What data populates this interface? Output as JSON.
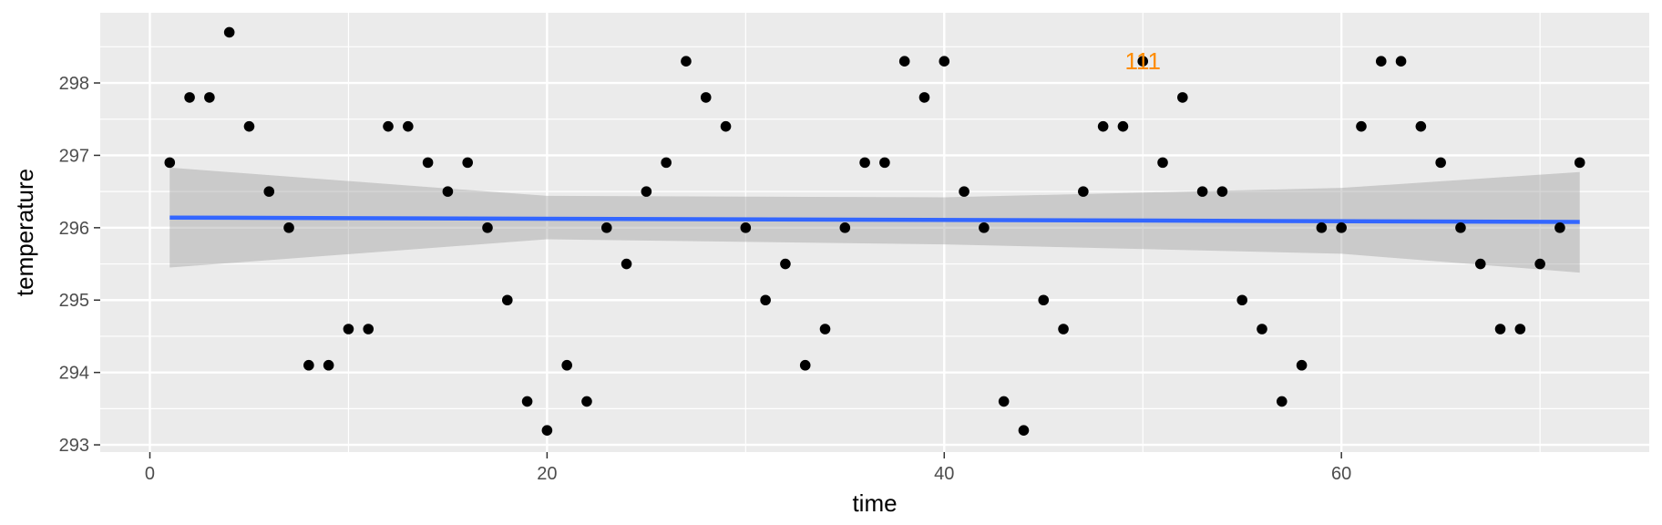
{
  "chart_data": {
    "type": "scatter",
    "title": "",
    "xlabel": "time",
    "ylabel": "temperature",
    "xlim": [
      -2.5,
      75.5
    ],
    "ylim": [
      292.9,
      298.97
    ],
    "x_ticks": [
      0,
      20,
      40,
      60
    ],
    "x_tick_labels": [
      "0",
      "20",
      "40",
      "60"
    ],
    "y_ticks": [
      293,
      294,
      295,
      296,
      297,
      298
    ],
    "y_tick_labels": [
      "293",
      "294",
      "295",
      "296",
      "297",
      "298"
    ],
    "grid": true,
    "legend": "none",
    "points": {
      "x": [
        1,
        2,
        3,
        4,
        5,
        6,
        7,
        8,
        9,
        10,
        11,
        12,
        13,
        14,
        15,
        16,
        17,
        18,
        19,
        20,
        21,
        22,
        23,
        24,
        25,
        26,
        27,
        28,
        29,
        30,
        31,
        32,
        33,
        34,
        35,
        36,
        37,
        38,
        39,
        40,
        41,
        42,
        43,
        44,
        45,
        46,
        47,
        48,
        49,
        50,
        51,
        52,
        53,
        54,
        55,
        56,
        57,
        58,
        59,
        60,
        61,
        62,
        63,
        64,
        65,
        66,
        67,
        68,
        69,
        70,
        71,
        72
      ],
      "y": [
        296.9,
        297.8,
        297.8,
        298.7,
        297.4,
        296.5,
        296.0,
        294.1,
        294.1,
        294.6,
        294.6,
        297.4,
        297.4,
        296.9,
        296.5,
        296.9,
        296.0,
        295.0,
        293.6,
        293.2,
        294.1,
        293.6,
        296.0,
        295.5,
        296.5,
        296.9,
        298.3,
        297.8,
        297.4,
        296.0,
        295.0,
        295.5,
        294.1,
        294.6,
        296.0,
        296.9,
        296.9,
        298.3,
        297.8,
        298.3,
        296.5,
        296.0,
        293.6,
        293.2,
        295.0,
        294.6,
        296.5,
        297.4,
        297.4,
        298.3,
        296.9,
        297.8,
        296.5,
        296.5,
        295.0,
        294.6,
        293.6,
        294.1,
        296.0,
        296.0,
        297.4,
        298.3,
        298.3,
        297.4,
        296.9,
        296.0,
        295.5,
        294.6,
        294.6,
        295.5,
        296.0,
        296.9
      ],
      "color": "#000000"
    },
    "trend_line": {
      "method": "linear",
      "x": [
        1,
        72
      ],
      "y": [
        296.14,
        296.08
      ],
      "color": "#3366FF"
    },
    "confidence_band": {
      "x": [
        1,
        20,
        40,
        60,
        72
      ],
      "lower": [
        295.45,
        295.84,
        295.77,
        295.64,
        295.38
      ],
      "upper": [
        296.83,
        296.44,
        296.42,
        296.55,
        296.77
      ],
      "color": "#999999"
    },
    "annotations": [
      {
        "text": "111",
        "x": 50,
        "y": 298.3,
        "color": "#FF8C00"
      }
    ],
    "panel_color": "#EBEBEB",
    "grid_color": "#FFFFFF"
  }
}
